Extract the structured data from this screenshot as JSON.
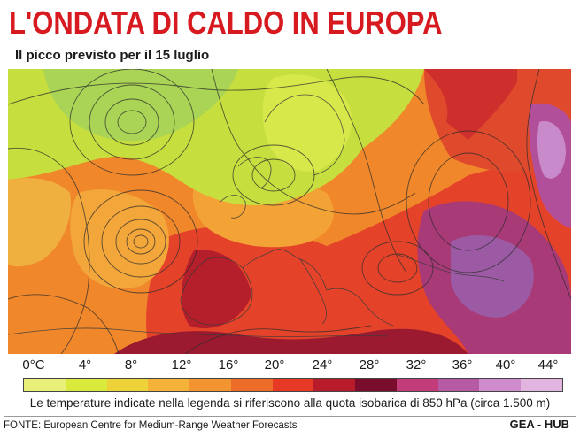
{
  "header": {
    "title": "L'ONDATA DI CALDO IN EUROPA",
    "subtitle": "Il picco previsto per il 15 luglio"
  },
  "legend": {
    "ticks": [
      "0°C",
      "4°",
      "8°",
      "12°",
      "16°",
      "20°",
      "24°",
      "28°",
      "32°",
      "36°",
      "40°",
      "44°"
    ],
    "colors": [
      "#e8f07a",
      "#d9ea3c",
      "#eed23a",
      "#f5b238",
      "#f29530",
      "#ee6c2a",
      "#e63a26",
      "#b81c2a",
      "#7a0d2c",
      "#c23c7a",
      "#b65aa6",
      "#cf8ccd",
      "#e2b4e0"
    ],
    "note": "Le temperature indicate nella legenda si riferiscono alla quota isobarica di 850 hPa (circa 1.500 m)"
  },
  "footer": {
    "source": "FONTE: European Centre for Medium-Range Weather Forecasts",
    "credit": "GEA - HUB"
  }
}
